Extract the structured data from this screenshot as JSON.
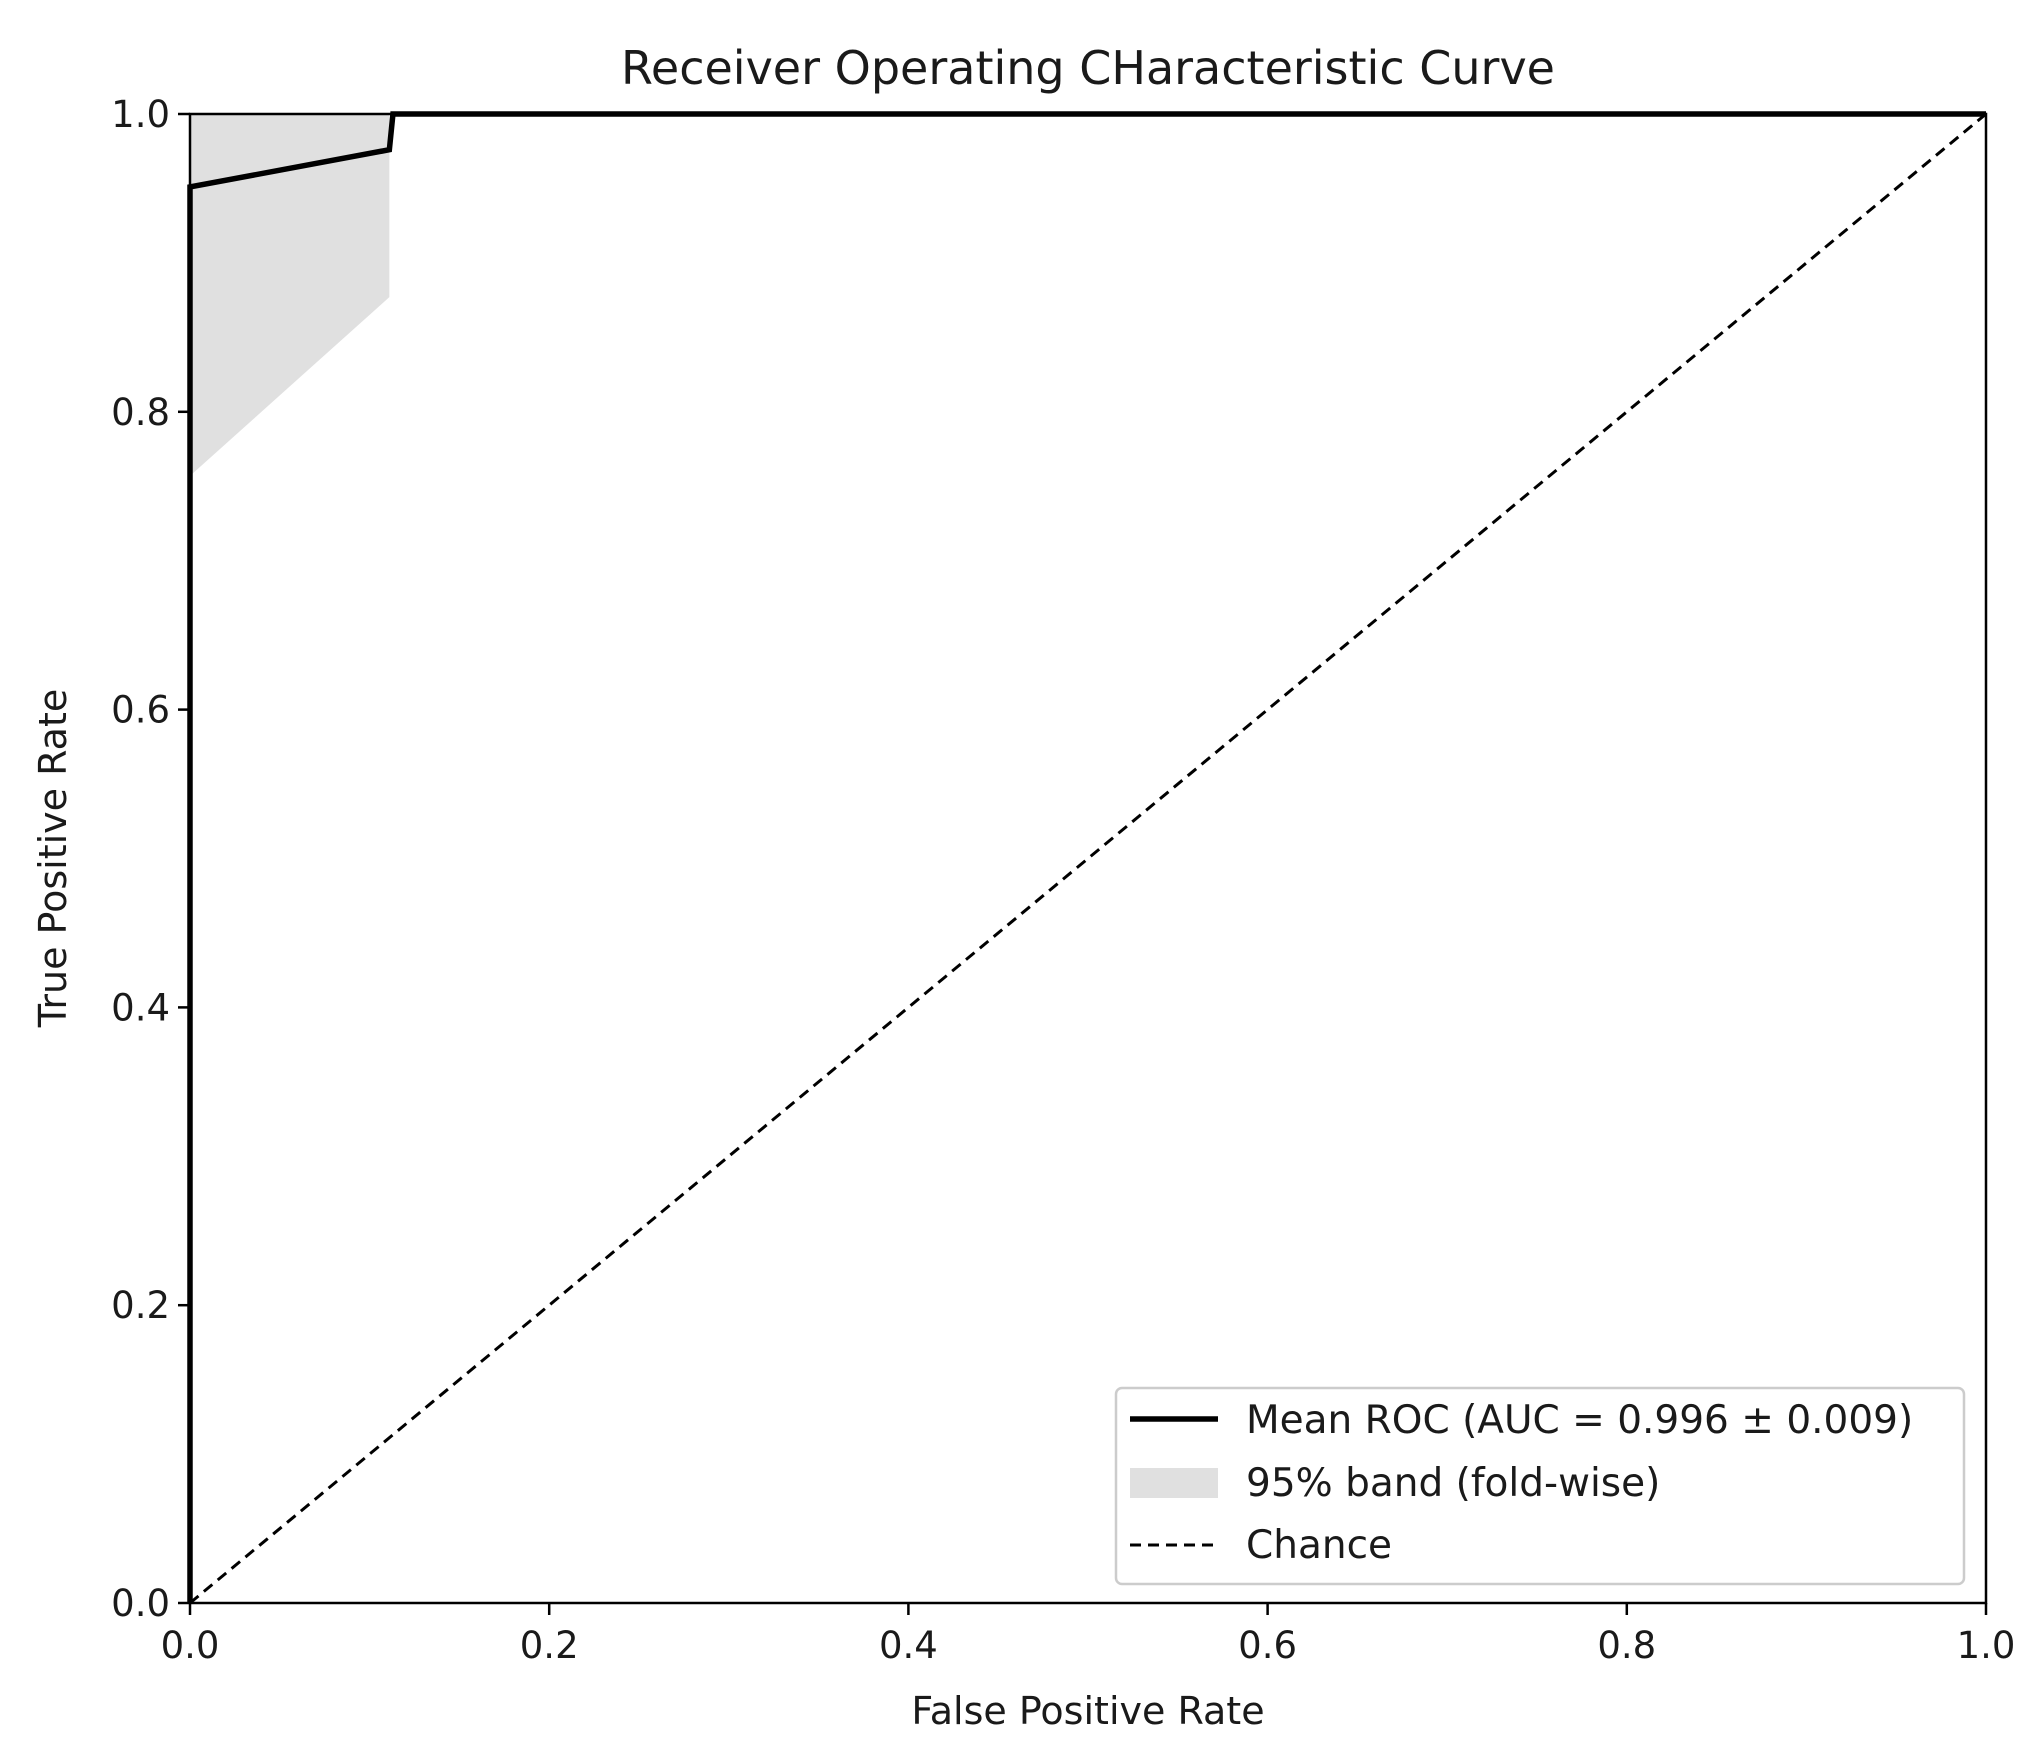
{
  "chart_data": {
    "type": "line",
    "title": "Receiver Operating CHaracteristic Curve",
    "xlabel": "False Positive Rate",
    "ylabel": "True Positive Rate",
    "xlim": [
      0.0,
      1.0
    ],
    "ylim": [
      0.0,
      1.0
    ],
    "xticks": [
      "0.0",
      "0.2",
      "0.4",
      "0.6",
      "0.8",
      "1.0"
    ],
    "yticks": [
      "0.0",
      "0.2",
      "0.4",
      "0.6",
      "0.8",
      "1.0"
    ],
    "grid": false,
    "legend_position": "lower-right",
    "legend": [
      "Mean ROC (AUC = 0.996 ± 0.009)",
      "95% band (fold-wise)",
      "Chance"
    ],
    "series": [
      {
        "name": "Mean ROC (AUC = 0.996 ± 0.009)",
        "style": "solid",
        "color": "#000000",
        "x": [
          0.0,
          0.0,
          0.111,
          0.111,
          0.113,
          1.0
        ],
        "y": [
          0.0,
          0.951,
          0.976,
          0.976,
          1.0,
          1.0
        ]
      },
      {
        "name": "95% band (fold-wise)",
        "style": "band",
        "color": "#e0e0e0",
        "x": [
          0.0,
          0.0,
          0.111,
          0.111,
          0.111
        ],
        "lower": [
          0.0,
          0.757,
          0.877,
          0.877,
          1.0
        ],
        "upper": [
          0.0,
          1.0,
          1.0,
          1.0,
          1.0
        ]
      },
      {
        "name": "Chance",
        "style": "dashed",
        "color": "#000000",
        "x": [
          0.0,
          1.0
        ],
        "y": [
          0.0,
          1.0
        ]
      }
    ]
  }
}
